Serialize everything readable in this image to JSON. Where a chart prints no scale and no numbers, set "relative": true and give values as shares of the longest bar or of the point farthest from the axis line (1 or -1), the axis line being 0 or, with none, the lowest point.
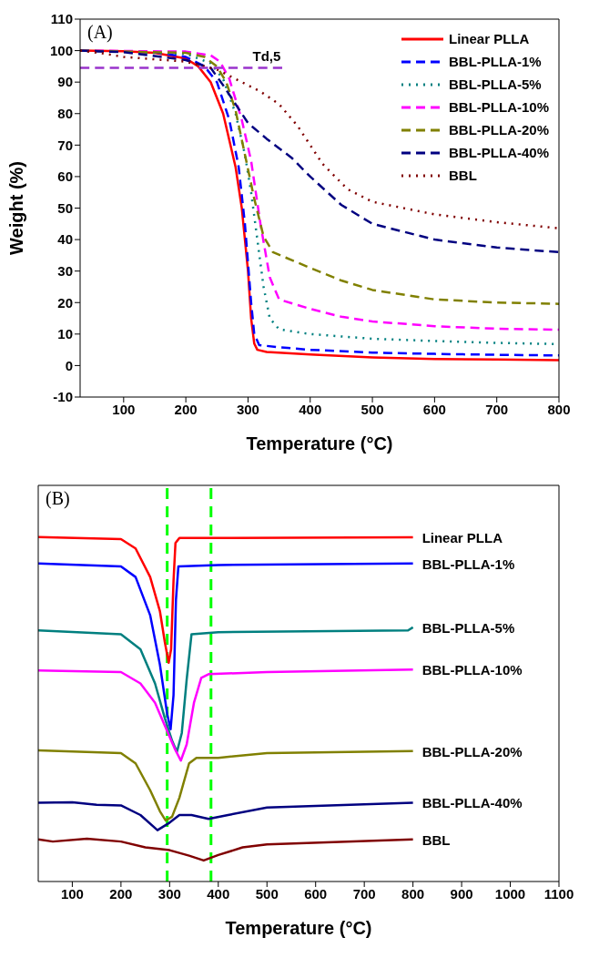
{
  "chart_data": [
    {
      "type": "line",
      "annotations": [
        "(A)",
        {
          "text": "Td,5",
          "x": 330,
          "y": 94.5
        }
      ],
      "xlabel": "Temperature (°C)",
      "ylabel": "Weight (%)",
      "xlim": [
        30,
        800
      ],
      "xticks": [
        100,
        200,
        300,
        400,
        500,
        600,
        700,
        800
      ],
      "ylim": [
        -10,
        110
      ],
      "yticks": [
        -10,
        0,
        10,
        20,
        30,
        40,
        50,
        60,
        70,
        80,
        90,
        100,
        110
      ],
      "legend": "top right",
      "grid": false,
      "series": [
        {
          "name": "Linear PLLA",
          "color": "#ff0000",
          "line_style": "solid",
          "x": [
            30,
            100,
            150,
            200,
            220,
            240,
            260,
            280,
            290,
            300,
            305,
            310,
            315,
            330,
            400,
            500,
            600,
            700,
            800
          ],
          "values": [
            100,
            99.8,
            99.3,
            97.5,
            95,
            90,
            80,
            63,
            50,
            30,
            15,
            7,
            5,
            4.3,
            3.5,
            2.6,
            2.1,
            1.9,
            1.7
          ]
        },
        {
          "name": "BBL-PLLA-1%",
          "color": "#0000ff",
          "line_style": "dashed",
          "x": [
            30,
            150,
            200,
            230,
            250,
            270,
            285,
            295,
            305,
            310,
            318,
            350,
            400,
            500,
            600,
            700,
            800
          ],
          "values": [
            100,
            99.5,
            98,
            95,
            90,
            78,
            63,
            45,
            20,
            10,
            6.5,
            5.8,
            5,
            4.1,
            3.7,
            3.4,
            3.2
          ]
        },
        {
          "name": "BBL-PLLA-5%",
          "color": "#008080",
          "line_style": "dotted",
          "x": [
            30,
            200,
            240,
            260,
            280,
            295,
            305,
            315,
            325,
            335,
            350,
            400,
            500,
            600,
            700,
            800
          ],
          "values": [
            100,
            99,
            96,
            91,
            80,
            67,
            55,
            40,
            25,
            15,
            11.5,
            10,
            8.5,
            7.8,
            7.2,
            6.8
          ]
        },
        {
          "name": "BBL-PLLA-10%",
          "color": "#ff00ff",
          "line_style": "dashed",
          "x": [
            30,
            200,
            240,
            255,
            270,
            290,
            305,
            320,
            335,
            350,
            400,
            450,
            500,
            600,
            700,
            800
          ],
          "values": [
            100,
            99.7,
            98.5,
            96.5,
            91,
            78,
            65,
            45,
            28,
            21,
            18,
            15.5,
            14,
            12.5,
            11.7,
            11.4
          ]
        },
        {
          "name": "BBL-PLLA-20%",
          "color": "#808000",
          "line_style": "dashed",
          "x": [
            30,
            200,
            230,
            250,
            265,
            280,
            295,
            310,
            325,
            340,
            400,
            450,
            500,
            600,
            700,
            800
          ],
          "values": [
            100,
            99.3,
            98,
            95,
            90,
            81,
            67,
            53,
            41,
            36,
            31,
            27,
            24,
            21,
            20,
            19.6
          ]
        },
        {
          "name": "BBL-PLLA-40%",
          "color": "#000080",
          "line_style": "dashed",
          "x": [
            30,
            100,
            200,
            240,
            260,
            280,
            300,
            330,
            370,
            400,
            450,
            500,
            600,
            700,
            800
          ],
          "values": [
            100,
            99.5,
            97,
            94.5,
            89,
            83,
            77,
            72,
            66,
            60,
            51,
            45,
            40,
            37.5,
            36
          ]
        },
        {
          "name": "BBL",
          "color": "#800000",
          "line_style": "dotted",
          "x": [
            30,
            70,
            100,
            200,
            250,
            280,
            320,
            350,
            380,
            420,
            460,
            500,
            600,
            700,
            800
          ],
          "values": [
            100,
            99,
            98,
            96.5,
            94,
            91,
            87,
            83,
            76,
            64,
            56,
            52,
            48,
            45.5,
            43.6
          ]
        },
        {
          "color": "#9933cc",
          "line_style": "dashed",
          "x": [
            30,
            355
          ],
          "values": [
            94.5,
            94.5
          ]
        }
      ]
    },
    {
      "type": "line",
      "relative": true,
      "annotations": [
        "(B)"
      ],
      "xlabel": "Temperature (°C)",
      "xlim": [
        30,
        1100
      ],
      "xticks": [
        100,
        200,
        300,
        400,
        500,
        600,
        700,
        800,
        900,
        1000,
        1100
      ],
      "legend": false,
      "grid": false,
      "ref_lines": [
        {
          "axis": "x",
          "value": 295,
          "color": "#00ff00",
          "line_style": "dashed"
        },
        {
          "axis": "x",
          "value": 385,
          "color": "#00ff00",
          "line_style": "dashed"
        }
      ],
      "series": [
        {
          "name": "Linear PLLA",
          "color": "#ff0000",
          "x": [
            30,
            200,
            230,
            260,
            280,
            290,
            298,
            303,
            308,
            312,
            320,
            400,
            800
          ],
          "values": [
            1.0,
            0.994,
            0.967,
            0.884,
            0.785,
            0.696,
            0.635,
            0.674,
            0.873,
            0.983,
            0.997,
            0.997,
            0.999
          ]
        },
        {
          "name": "BBL-PLLA-1%",
          "color": "#0000ff",
          "x": [
            30,
            200,
            230,
            260,
            280,
            295,
            302,
            308,
            313,
            318,
            400,
            800
          ],
          "values": [
            0.923,
            0.915,
            0.884,
            0.773,
            0.63,
            0.486,
            0.442,
            0.541,
            0.818,
            0.915,
            0.919,
            0.923
          ]
        },
        {
          "name": "BBL-PLLA-5%",
          "color": "#007f7f",
          "x": [
            30,
            200,
            240,
            270,
            290,
            305,
            315,
            325,
            335,
            345,
            400,
            790,
            800
          ],
          "values": [
            0.729,
            0.718,
            0.674,
            0.575,
            0.475,
            0.409,
            0.376,
            0.431,
            0.586,
            0.718,
            0.724,
            0.729,
            0.738
          ]
        },
        {
          "name": "BBL-PLLA-10%",
          "color": "#ff00ff",
          "x": [
            30,
            200,
            240,
            270,
            290,
            310,
            323,
            335,
            350,
            365,
            380,
            500,
            800
          ],
          "values": [
            0.613,
            0.608,
            0.575,
            0.519,
            0.453,
            0.387,
            0.351,
            0.398,
            0.519,
            0.591,
            0.602,
            0.608,
            0.615
          ]
        },
        {
          "name": "BBL-PLLA-20%",
          "color": "#808000",
          "x": [
            30,
            200,
            230,
            260,
            280,
            292,
            305,
            320,
            340,
            355,
            400,
            500,
            800
          ],
          "values": [
            0.381,
            0.373,
            0.343,
            0.265,
            0.204,
            0.177,
            0.188,
            0.243,
            0.343,
            0.359,
            0.359,
            0.373,
            0.379
          ]
        },
        {
          "name": "BBL-PLLA-40%",
          "color": "#000080",
          "x": [
            30,
            100,
            150,
            200,
            240,
            275,
            300,
            320,
            345,
            380,
            420,
            500,
            800
          ],
          "values": [
            0.229,
            0.23,
            0.223,
            0.221,
            0.193,
            0.149,
            0.171,
            0.193,
            0.193,
            0.182,
            0.193,
            0.215,
            0.229
          ]
        },
        {
          "name": "BBL",
          "color": "#800000",
          "x": [
            30,
            60,
            130,
            200,
            250,
            300,
            340,
            370,
            400,
            450,
            500,
            800
          ],
          "values": [
            0.122,
            0.116,
            0.124,
            0.116,
            0.099,
            0.091,
            0.075,
            0.061,
            0.077,
            0.099,
            0.108,
            0.122
          ]
        }
      ]
    }
  ]
}
